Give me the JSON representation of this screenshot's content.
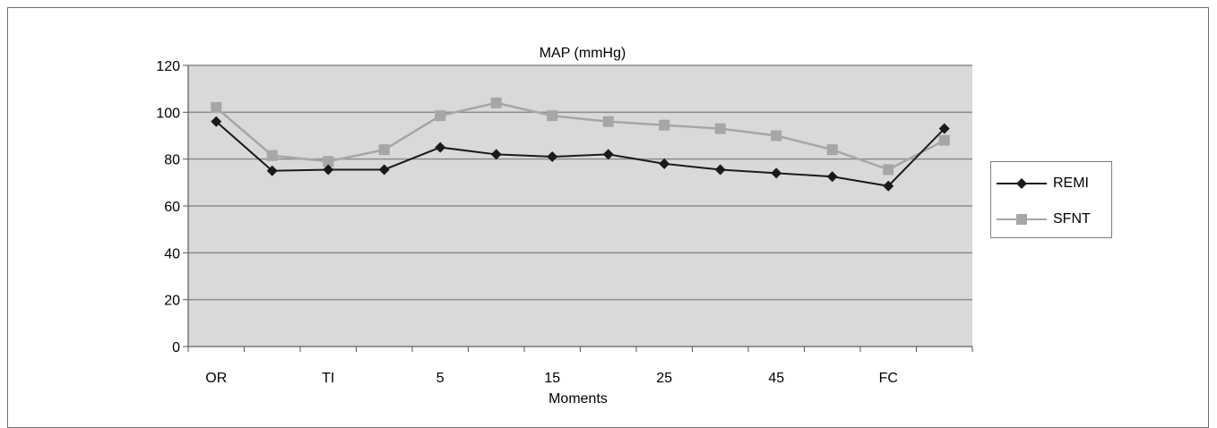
{
  "chart_data": {
    "type": "line",
    "title": "MAP (mmHg)",
    "xlabel": "Moments",
    "ylabel": "",
    "ylim": [
      0,
      120
    ],
    "yticks": [
      0,
      20,
      40,
      60,
      80,
      100,
      120
    ],
    "x_tick_labels": [
      "OR",
      "TI",
      "5",
      "15",
      "25",
      "45",
      "FC"
    ],
    "legend_position": "right",
    "grid": true,
    "background_color": "#d9d9d9",
    "series": [
      {
        "name": "REMI",
        "color": "#1a1a1a",
        "marker": "diamond",
        "values": [
          96,
          75,
          75.5,
          75.5,
          85,
          82,
          81,
          82,
          78,
          75.5,
          74,
          72.5,
          68.5,
          93
        ]
      },
      {
        "name": "SFNT",
        "color": "#a6a6a6",
        "marker": "square",
        "values": [
          102,
          81.5,
          79,
          84,
          98.5,
          104,
          98.5,
          96,
          94.5,
          93,
          90,
          84,
          75.5,
          88
        ]
      }
    ]
  }
}
